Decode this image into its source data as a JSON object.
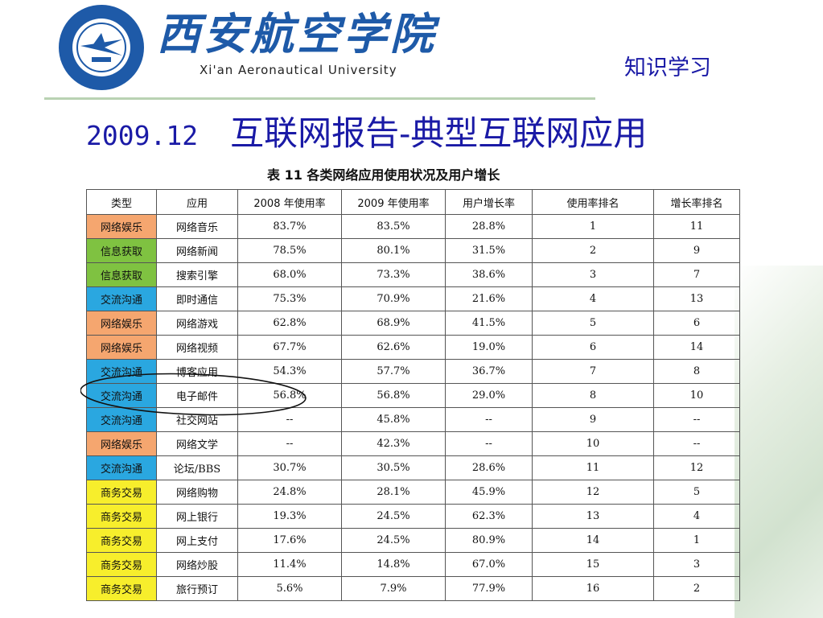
{
  "header": {
    "university_chinese": "西安航空学院",
    "university_english": "Xi'an Aeronautical University",
    "tag": "知识学习"
  },
  "slide": {
    "title_date": "2009.12",
    "title_text": "互联网报告-典型互联网应用"
  },
  "table": {
    "caption": "表 11 各类网络应用使用状况及用户增长",
    "headers": [
      "类型",
      "应用",
      "2008 年使用率",
      "2009 年使用率",
      "用户增长率",
      "使用率排名",
      "增长率排名"
    ],
    "rows": [
      [
        "网络娱乐",
        "网络音乐",
        "83.7%",
        "83.5%",
        "28.8%",
        "1",
        "11"
      ],
      [
        "信息获取",
        "网络新闻",
        "78.5%",
        "80.1%",
        "31.5%",
        "2",
        "9"
      ],
      [
        "信息获取",
        "搜索引擎",
        "68.0%",
        "73.3%",
        "38.6%",
        "3",
        "7"
      ],
      [
        "交流沟通",
        "即时通信",
        "75.3%",
        "70.9%",
        "21.6%",
        "4",
        "13"
      ],
      [
        "网络娱乐",
        "网络游戏",
        "62.8%",
        "68.9%",
        "41.5%",
        "5",
        "6"
      ],
      [
        "网络娱乐",
        "网络视频",
        "67.7%",
        "62.6%",
        "19.0%",
        "6",
        "14"
      ],
      [
        "交流沟通",
        "博客应用",
        "54.3%",
        "57.7%",
        "36.7%",
        "7",
        "8"
      ],
      [
        "交流沟通",
        "电子邮件",
        "56.8%",
        "56.8%",
        "29.0%",
        "8",
        "10"
      ],
      [
        "交流沟通",
        "社交网站",
        "--",
        "45.8%",
        "--",
        "9",
        "--"
      ],
      [
        "网络娱乐",
        "网络文学",
        "--",
        "42.3%",
        "--",
        "10",
        "--"
      ],
      [
        "交流沟通",
        "论坛/BBS",
        "30.7%",
        "30.5%",
        "28.6%",
        "11",
        "12"
      ],
      [
        "商务交易",
        "网络购物",
        "24.8%",
        "28.1%",
        "45.9%",
        "12",
        "5"
      ],
      [
        "商务交易",
        "网上银行",
        "19.3%",
        "24.5%",
        "62.3%",
        "13",
        "4"
      ],
      [
        "商务交易",
        "网上支付",
        "17.6%",
        "24.5%",
        "80.9%",
        "14",
        "1"
      ],
      [
        "商务交易",
        "网络炒股",
        "11.4%",
        "14.8%",
        "67.0%",
        "15",
        "3"
      ],
      [
        "商务交易",
        "旅行预订",
        "5.6%",
        "7.9%",
        "77.9%",
        "16",
        "2"
      ]
    ]
  },
  "colors": {
    "网络娱乐": "#f5a66f",
    "信息获取": "#7fc241",
    "交流沟通": "#2aa7e0",
    "商务交易": "#f7ee2c",
    "title": "#1a1aa6",
    "logo_blue": "#1e5aa8"
  }
}
